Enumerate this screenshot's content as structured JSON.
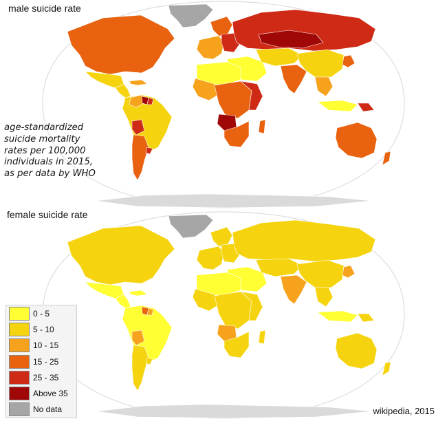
{
  "maps": {
    "male": {
      "title": "male suicide rate"
    },
    "female": {
      "title": "female suicide rate"
    }
  },
  "note_lines": [
    "age-standardized",
    "suicide mortality",
    "rates per 100,000",
    "individuals in 2015,",
    "as per data by WHO"
  ],
  "legend": [
    {
      "label": "0 - 5",
      "color": "#ffff33"
    },
    {
      "label": "5 - 10",
      "color": "#f5d40f"
    },
    {
      "label": "10 - 15",
      "color": "#f7a21c"
    },
    {
      "label": "15 - 25",
      "color": "#e8620f"
    },
    {
      "label": "25 - 35",
      "color": "#cf2a16"
    },
    {
      "label": "Above 35",
      "color": "#a00707"
    },
    {
      "label": "No data",
      "color": "#a6a6a6"
    }
  ],
  "source": "wikipedia, 2015",
  "colors": {
    "ocean": "#ffffff",
    "outline": "#dddddd",
    "borders": "#ffffff"
  }
}
